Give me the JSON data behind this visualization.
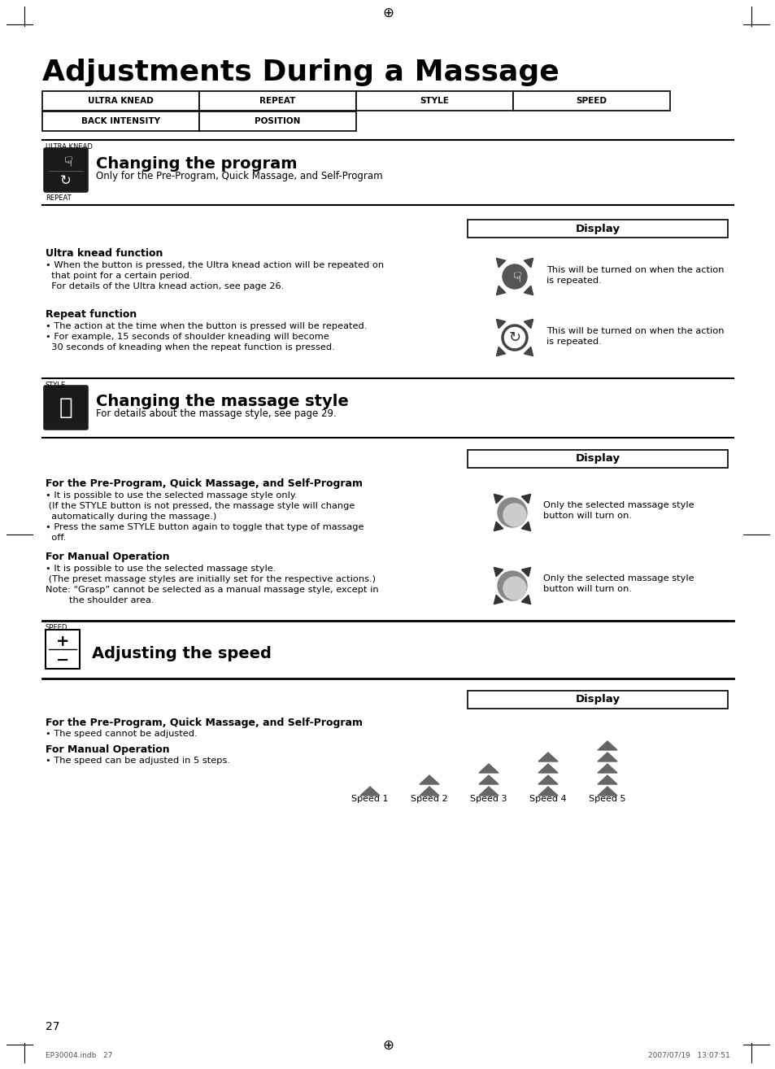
{
  "title": "Adjustments During a Massage",
  "bg_color": "#ffffff",
  "page_number": "27",
  "buttons_row1": [
    "ULTRA KNEAD",
    "REPEAT",
    "STYLE",
    "SPEED"
  ],
  "buttons_row2": [
    "BACK INTENSITY",
    "POSITION"
  ],
  "section1_label": "ULTRA KNEAD",
  "section1_heading": "Changing the program",
  "section1_subheading": "Only for the Pre-Program, Quick Massage, and Self-Program",
  "section1_repeat_label": "REPEAT",
  "display_label": "Display",
  "ultra_knead_heading": "Ultra knead function",
  "ultra_knead_b1": "• When the button is pressed, the Ultra knead action will be repeated on",
  "ultra_knead_b2": "  that point for a certain period.",
  "ultra_knead_b3": "  For details of the Ultra knead action, see page 26.",
  "ultra_knead_caption1": "This will be turned on when the action",
  "ultra_knead_caption2": "is repeated.",
  "repeat_heading": "Repeat function",
  "repeat_b1": "• The action at the time when the button is pressed will be repeated.",
  "repeat_b2": "• For example, 15 seconds of shoulder kneading will become",
  "repeat_b3": "  30 seconds of kneading when the repeat function is pressed.",
  "repeat_caption1": "This will be turned on when the action",
  "repeat_caption2": "is repeated.",
  "section2_label": "STYLE",
  "section2_heading": "Changing the massage style",
  "section2_subheading": "For details about the massage style, see page 29.",
  "pre_prog_heading": "For the Pre-Program, Quick Massage, and Self-Program",
  "pre_prog_b1": "• It is possible to use the selected massage style only.",
  "pre_prog_b2": " (If the STYLE button is not pressed, the massage style will change",
  "pre_prog_b3": "  automatically during the massage.)",
  "pre_prog_b4": "• Press the same STYLE button again to toggle that type of massage",
  "pre_prog_b5": "  off.",
  "pre_prog_cap1": "Only the selected massage style",
  "pre_prog_cap2": "button will turn on.",
  "manual_op_heading": "For Manual Operation",
  "manual_op_b1": "• It is possible to use the selected massage style.",
  "manual_op_b2": " (The preset massage styles are initially set for the respective actions.)",
  "manual_op_b3": "Note: “Grasp” cannot be selected as a manual massage style, except in",
  "manual_op_b4": "        the shoulder area.",
  "manual_op_cap1": "Only the selected massage style",
  "manual_op_cap2": "button will turn on.",
  "section3_label": "SPEED",
  "section3_heading": "Adjusting the speed",
  "speed_pre_heading": "For the Pre-Program, Quick Massage, and Self-Program",
  "speed_pre_bullet": "• The speed cannot be adjusted.",
  "speed_manual_heading": "For Manual Operation",
  "speed_manual_bullet": "• The speed can be adjusted in 5 steps.",
  "speed_labels": [
    "Speed 1",
    "Speed 2",
    "Speed 3",
    "Speed 4",
    "Speed 5"
  ],
  "footer_left": "EP30004.indb   27",
  "footer_right": "2007/07/19   13:07:51"
}
